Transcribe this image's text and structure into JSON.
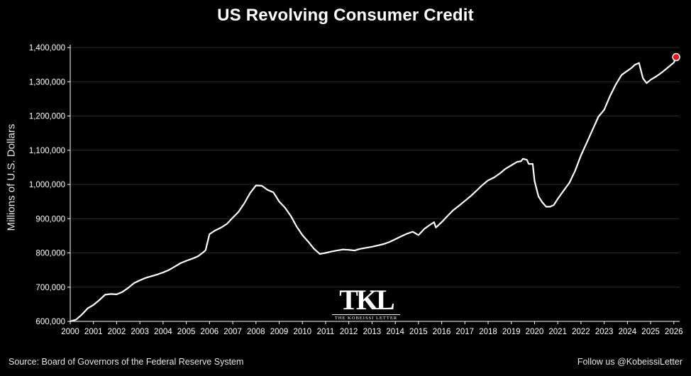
{
  "chart_data": {
    "type": "line",
    "title": "US Revolving Consumer Credit",
    "ylabel": "Millions of U.S. Dollars",
    "xlabel": "",
    "ylim": [
      600000,
      1400000
    ],
    "xlim": [
      2000,
      2026.25
    ],
    "y_ticks": [
      "600,000",
      "700,000",
      "800,000",
      "900,000",
      "1,000,000",
      "1,100,000",
      "1,200,000",
      "1,300,000",
      "1,400,000"
    ],
    "x_ticks": [
      "2000",
      "2001",
      "2002",
      "2003",
      "2004",
      "2005",
      "2006",
      "2007",
      "2008",
      "2009",
      "2010",
      "2011",
      "2012",
      "2013",
      "2014",
      "2015",
      "2016",
      "2017",
      "2018",
      "2019",
      "2020",
      "2021",
      "2022",
      "2023",
      "2024",
      "2025",
      "2026"
    ],
    "grid": true,
    "line_color": "#ffffff",
    "marker_color": "#e8141c",
    "series": [
      {
        "name": "",
        "x": [
          2000.0,
          2000.25,
          2000.5,
          2000.75,
          2001.0,
          2001.25,
          2001.5,
          2001.75,
          2002.0,
          2002.25,
          2002.5,
          2002.75,
          2003.0,
          2003.25,
          2003.5,
          2003.75,
          2004.0,
          2004.25,
          2004.5,
          2004.75,
          2005.0,
          2005.25,
          2005.5,
          2005.75,
          2005.83,
          2006.0,
          2006.25,
          2006.5,
          2006.75,
          2007.0,
          2007.25,
          2007.5,
          2007.75,
          2008.0,
          2008.25,
          2008.5,
          2008.75,
          2009.0,
          2009.25,
          2009.5,
          2009.75,
          2010.0,
          2010.25,
          2010.5,
          2010.75,
          2011.0,
          2011.25,
          2011.5,
          2011.75,
          2012.0,
          2012.25,
          2012.5,
          2012.75,
          2013.0,
          2013.25,
          2013.5,
          2013.75,
          2014.0,
          2014.25,
          2014.5,
          2014.75,
          2015.0,
          2015.25,
          2015.5,
          2015.67,
          2015.75,
          2016.0,
          2016.25,
          2016.5,
          2016.75,
          2017.0,
          2017.25,
          2017.5,
          2017.75,
          2018.0,
          2018.25,
          2018.5,
          2018.75,
          2019.0,
          2019.25,
          2019.42,
          2019.5,
          2019.67,
          2019.75,
          2019.92,
          2020.0,
          2020.17,
          2020.33,
          2020.5,
          2020.67,
          2020.83,
          2021.0,
          2021.25,
          2021.5,
          2021.75,
          2022.0,
          2022.25,
          2022.5,
          2022.75,
          2023.0,
          2023.25,
          2023.5,
          2023.75,
          2024.0,
          2024.17,
          2024.33,
          2024.5,
          2024.67,
          2024.83,
          2025.0,
          2025.25,
          2025.5,
          2025.75,
          2026.0,
          2026.1
        ],
        "values": [
          600000,
          605000,
          620000,
          638000,
          648000,
          662000,
          678000,
          680000,
          679000,
          686000,
          698000,
          712000,
          720000,
          727000,
          732000,
          737000,
          743000,
          750000,
          760000,
          770000,
          777000,
          783000,
          790000,
          803000,
          808000,
          855000,
          866000,
          874000,
          885000,
          903000,
          920000,
          945000,
          975000,
          997000,
          996000,
          984000,
          977000,
          950000,
          932000,
          908000,
          877000,
          852000,
          833000,
          812000,
          797000,
          800000,
          804000,
          807000,
          810000,
          809000,
          807000,
          812000,
          815000,
          818000,
          822000,
          826000,
          832000,
          840000,
          848000,
          856000,
          862000,
          852000,
          870000,
          882000,
          890000,
          874000,
          890000,
          908000,
          925000,
          938000,
          952000,
          966000,
          982000,
          998000,
          1012000,
          1020000,
          1032000,
          1046000,
          1056000,
          1066000,
          1068000,
          1075000,
          1072000,
          1060000,
          1060000,
          1010000,
          965000,
          948000,
          935000,
          935000,
          940000,
          958000,
          982000,
          1005000,
          1040000,
          1085000,
          1122000,
          1160000,
          1198000,
          1218000,
          1258000,
          1292000,
          1320000,
          1332000,
          1340000,
          1350000,
          1355000,
          1310000,
          1296000,
          1306000,
          1316000,
          1328000,
          1342000,
          1356000,
          1372000
        ]
      }
    ]
  },
  "footer": {
    "source": "Source: Board of Governors of the Federal Reserve System",
    "follow": "Follow us @KobeissiLetter"
  },
  "logo": {
    "mark": "TKL",
    "subtitle": "THE KOBEISSI LETTER"
  }
}
